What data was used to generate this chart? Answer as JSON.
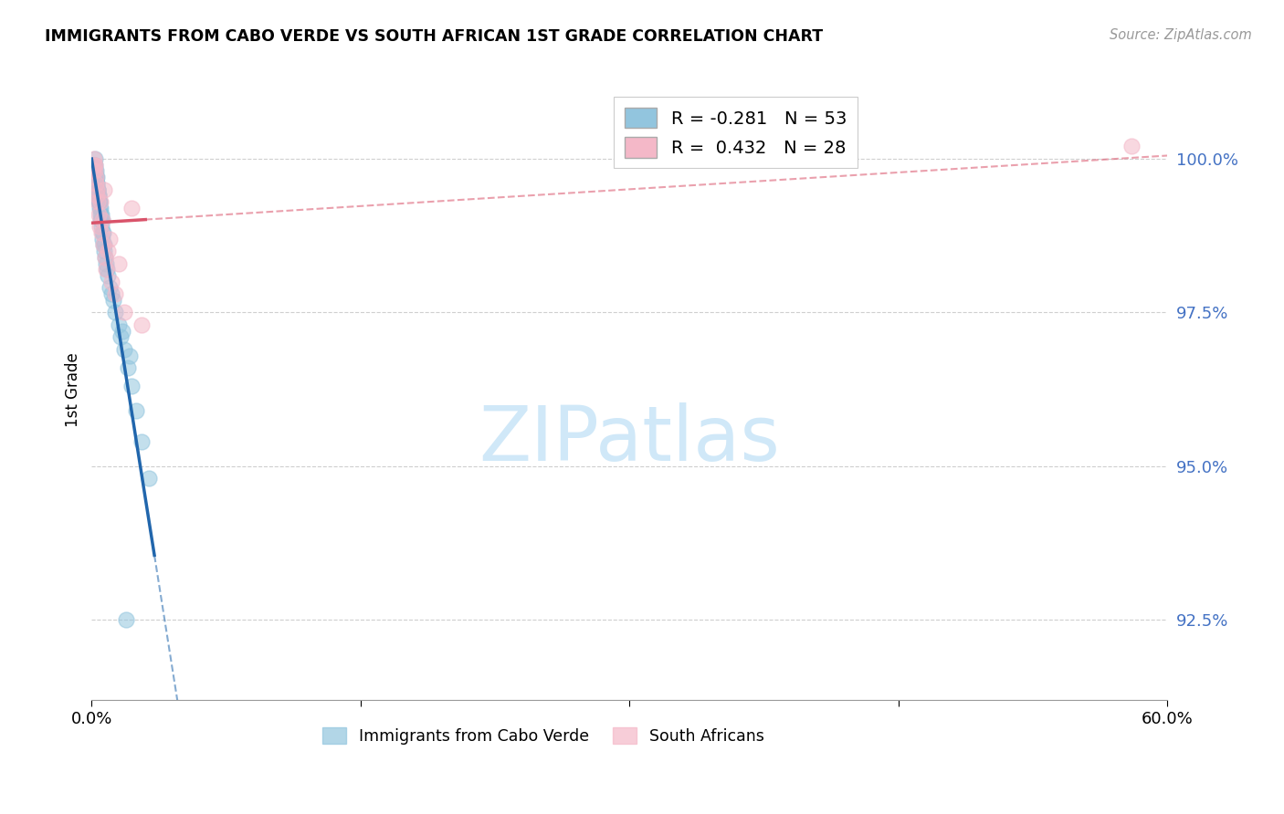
{
  "title": "IMMIGRANTS FROM CABO VERDE VS SOUTH AFRICAN 1ST GRADE CORRELATION CHART",
  "source": "Source: ZipAtlas.com",
  "ylabel": "1st Grade",
  "yticks": [
    92.5,
    95.0,
    97.5,
    100.0
  ],
  "ytick_labels": [
    "92.5%",
    "95.0%",
    "97.5%",
    "100.0%"
  ],
  "xmin": 0.0,
  "xmax": 60.0,
  "ymin": 91.2,
  "ymax": 101.3,
  "cabo_verde_color": "#92c5de",
  "south_african_color": "#f4b8c8",
  "cabo_verde_line_color": "#2166ac",
  "south_african_line_color": "#d9536a",
  "cabo_verde_R": -0.281,
  "cabo_verde_N": 53,
  "south_african_R": 0.432,
  "south_african_N": 28,
  "cabo_verde_x": [
    0.1,
    0.15,
    0.18,
    0.2,
    0.22,
    0.25,
    0.28,
    0.3,
    0.32,
    0.35,
    0.38,
    0.4,
    0.42,
    0.45,
    0.48,
    0.5,
    0.52,
    0.55,
    0.58,
    0.6,
    0.65,
    0.7,
    0.75,
    0.8,
    0.9,
    1.0,
    1.1,
    1.3,
    1.5,
    1.6,
    1.8,
    2.0,
    2.2,
    2.5,
    2.8,
    3.2,
    0.12,
    0.17,
    0.23,
    0.27,
    0.33,
    0.37,
    0.43,
    0.47,
    0.53,
    0.57,
    0.62,
    0.68,
    0.85,
    1.2,
    1.7,
    2.1,
    1.9
  ],
  "cabo_verde_y": [
    99.8,
    99.9,
    100.0,
    99.9,
    99.8,
    99.7,
    99.7,
    99.6,
    99.5,
    99.5,
    99.4,
    99.3,
    99.3,
    99.2,
    99.1,
    99.0,
    99.0,
    98.9,
    98.8,
    98.7,
    98.6,
    98.5,
    98.4,
    98.3,
    98.1,
    97.9,
    97.8,
    97.5,
    97.3,
    97.1,
    96.9,
    96.6,
    96.3,
    95.9,
    95.4,
    94.8,
    99.9,
    99.8,
    99.7,
    99.6,
    99.5,
    99.4,
    99.3,
    99.2,
    99.1,
    99.0,
    98.8,
    98.6,
    98.2,
    97.7,
    97.2,
    96.8,
    92.5
  ],
  "south_african_x": [
    0.08,
    0.12,
    0.15,
    0.18,
    0.2,
    0.22,
    0.25,
    0.28,
    0.3,
    0.35,
    0.4,
    0.45,
    0.5,
    0.55,
    0.6,
    0.65,
    0.7,
    0.75,
    0.8,
    0.9,
    1.0,
    1.1,
    1.3,
    1.5,
    1.8,
    2.2,
    2.8,
    58.0
  ],
  "south_african_y": [
    99.8,
    99.9,
    100.0,
    99.9,
    99.8,
    99.7,
    99.6,
    99.5,
    99.4,
    99.3,
    99.1,
    98.9,
    99.3,
    98.8,
    99.0,
    98.6,
    99.5,
    98.4,
    98.2,
    98.5,
    98.7,
    98.0,
    97.8,
    98.3,
    97.5,
    99.2,
    97.3,
    100.2
  ],
  "watermark_text": "ZIPatlas",
  "watermark_color": "#d0e8f8"
}
